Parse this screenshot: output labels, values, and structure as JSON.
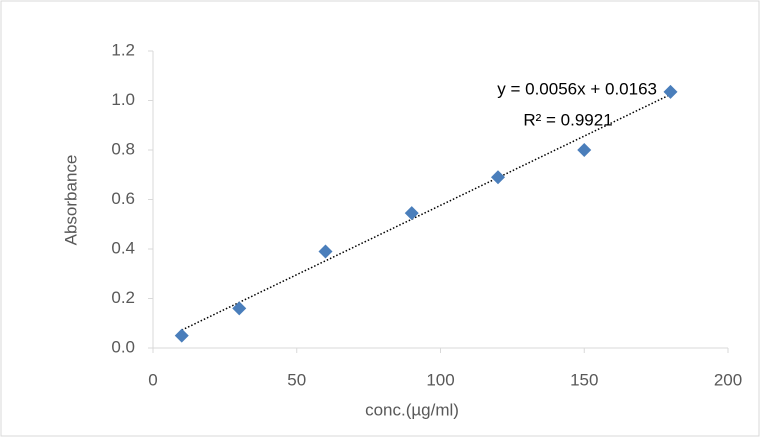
{
  "chart_data": {
    "type": "scatter",
    "x_label": "conc.(µg/ml)",
    "y_label": "Absorbance",
    "x": [
      10,
      30,
      60,
      90,
      120,
      150,
      180
    ],
    "series": [
      {
        "name": "Absorbance",
        "color": "#4a7ebb",
        "values": [
          0.05,
          0.16,
          0.39,
          0.545,
          0.69,
          0.8,
          1.035
        ]
      }
    ],
    "xlim": [
      0,
      200
    ],
    "xticks": [
      0,
      50,
      100,
      150,
      200
    ],
    "ylim": [
      0,
      1.2
    ],
    "yticks": [
      {
        "value": 0,
        "label": "0.0"
      },
      0.2,
      0.4,
      0.6,
      0.8,
      {
        "value": 1,
        "label": "1.0"
      },
      1.2
    ],
    "trendline": {
      "slope": 0.0056,
      "intercept": 0.0163,
      "equation": "y = 0.0056x + 0.0163",
      "r_squared": "R² = 0.9921"
    }
  }
}
